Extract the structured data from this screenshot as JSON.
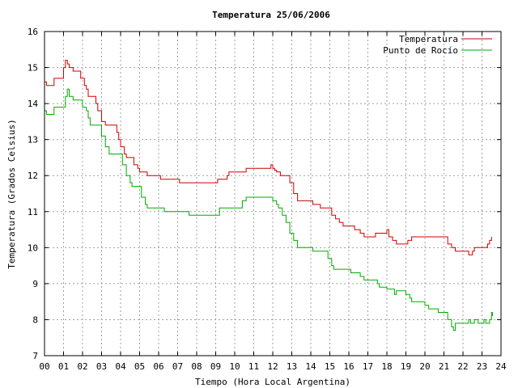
{
  "chart_data": {
    "type": "line",
    "title": "Temperatura 25/06/2006",
    "xlabel": "Tiempo (Hora Local Argentina)",
    "ylabel": "Temperatura (Grados Celsius)",
    "xlim": [
      0,
      24
    ],
    "ylim": [
      7,
      16
    ],
    "x_ticks": [
      "00",
      "01",
      "02",
      "03",
      "04",
      "05",
      "06",
      "07",
      "08",
      "09",
      "10",
      "11",
      "12",
      "13",
      "14",
      "15",
      "16",
      "17",
      "18",
      "19",
      "20",
      "21",
      "22",
      "23",
      "24"
    ],
    "y_ticks": [
      "7",
      "8",
      "9",
      "10",
      "11",
      "12",
      "13",
      "14",
      "15",
      "16"
    ],
    "grid": true,
    "legend_position": "top-right",
    "series": [
      {
        "name": "Temperatura",
        "color": "#cc0000",
        "points": [
          [
            0.0,
            14.6
          ],
          [
            0.1,
            14.5
          ],
          [
            0.4,
            14.5
          ],
          [
            0.5,
            14.7
          ],
          [
            0.9,
            14.7
          ],
          [
            1.0,
            15.0
          ],
          [
            1.1,
            15.2
          ],
          [
            1.2,
            15.1
          ],
          [
            1.3,
            15.0
          ],
          [
            1.5,
            14.9
          ],
          [
            1.8,
            14.9
          ],
          [
            1.9,
            14.7
          ],
          [
            2.1,
            14.5
          ],
          [
            2.2,
            14.4
          ],
          [
            2.3,
            14.2
          ],
          [
            2.6,
            14.2
          ],
          [
            2.7,
            14.0
          ],
          [
            2.8,
            13.8
          ],
          [
            3.0,
            13.5
          ],
          [
            3.2,
            13.4
          ],
          [
            3.7,
            13.4
          ],
          [
            3.8,
            13.2
          ],
          [
            3.9,
            13.0
          ],
          [
            4.0,
            12.8
          ],
          [
            4.2,
            12.6
          ],
          [
            4.3,
            12.5
          ],
          [
            4.6,
            12.5
          ],
          [
            4.7,
            12.3
          ],
          [
            4.9,
            12.2
          ],
          [
            5.0,
            12.1
          ],
          [
            5.3,
            12.1
          ],
          [
            5.4,
            12.0
          ],
          [
            6.0,
            12.0
          ],
          [
            6.1,
            11.9
          ],
          [
            7.0,
            11.9
          ],
          [
            7.1,
            11.8
          ],
          [
            9.0,
            11.8
          ],
          [
            9.1,
            11.9
          ],
          [
            9.5,
            11.9
          ],
          [
            9.6,
            12.0
          ],
          [
            9.7,
            12.1
          ],
          [
            10.5,
            12.1
          ],
          [
            10.6,
            12.2
          ],
          [
            11.8,
            12.2
          ],
          [
            11.9,
            12.3
          ],
          [
            12.0,
            12.2
          ],
          [
            12.1,
            12.15
          ],
          [
            12.2,
            12.1
          ],
          [
            12.4,
            12.0
          ],
          [
            12.8,
            12.0
          ],
          [
            12.9,
            11.8
          ],
          [
            13.1,
            11.5
          ],
          [
            13.3,
            11.3
          ],
          [
            14.0,
            11.3
          ],
          [
            14.1,
            11.2
          ],
          [
            14.5,
            11.1
          ],
          [
            15.0,
            11.1
          ],
          [
            15.1,
            10.9
          ],
          [
            15.3,
            10.8
          ],
          [
            15.5,
            10.7
          ],
          [
            15.7,
            10.6
          ],
          [
            16.2,
            10.6
          ],
          [
            16.3,
            10.5
          ],
          [
            16.6,
            10.4
          ],
          [
            16.8,
            10.3
          ],
          [
            17.3,
            10.3
          ],
          [
            17.4,
            10.4
          ],
          [
            17.9,
            10.4
          ],
          [
            18.0,
            10.5
          ],
          [
            18.1,
            10.3
          ],
          [
            18.3,
            10.2
          ],
          [
            18.5,
            10.1
          ],
          [
            19.0,
            10.1
          ],
          [
            19.1,
            10.2
          ],
          [
            19.3,
            10.3
          ],
          [
            21.1,
            10.3
          ],
          [
            21.2,
            10.1
          ],
          [
            21.4,
            10.0
          ],
          [
            21.6,
            9.9
          ],
          [
            22.1,
            9.9
          ],
          [
            22.3,
            9.8
          ],
          [
            22.5,
            9.9
          ],
          [
            22.6,
            10.0
          ],
          [
            23.2,
            10.0
          ],
          [
            23.3,
            10.1
          ],
          [
            23.4,
            10.2
          ],
          [
            23.5,
            10.3
          ]
        ]
      },
      {
        "name": "Punto de Rocío",
        "color": "#00aa00",
        "points": [
          [
            0.0,
            13.8
          ],
          [
            0.1,
            13.7
          ],
          [
            0.4,
            13.7
          ],
          [
            0.5,
            13.9
          ],
          [
            1.0,
            13.9
          ],
          [
            1.1,
            14.2
          ],
          [
            1.2,
            14.4
          ],
          [
            1.3,
            14.2
          ],
          [
            1.5,
            14.1
          ],
          [
            1.9,
            14.1
          ],
          [
            2.0,
            13.9
          ],
          [
            2.2,
            13.8
          ],
          [
            2.3,
            13.6
          ],
          [
            2.4,
            13.4
          ],
          [
            2.9,
            13.4
          ],
          [
            3.0,
            13.1
          ],
          [
            3.2,
            12.8
          ],
          [
            3.4,
            12.6
          ],
          [
            4.0,
            12.6
          ],
          [
            4.1,
            12.3
          ],
          [
            4.3,
            12.0
          ],
          [
            4.5,
            11.8
          ],
          [
            4.6,
            11.7
          ],
          [
            5.0,
            11.7
          ],
          [
            5.1,
            11.4
          ],
          [
            5.3,
            11.2
          ],
          [
            5.4,
            11.1
          ],
          [
            6.2,
            11.1
          ],
          [
            6.3,
            11.0
          ],
          [
            7.5,
            11.0
          ],
          [
            7.6,
            10.9
          ],
          [
            9.1,
            10.9
          ],
          [
            9.2,
            11.1
          ],
          [
            10.3,
            11.1
          ],
          [
            10.4,
            11.3
          ],
          [
            10.6,
            11.4
          ],
          [
            11.9,
            11.4
          ],
          [
            12.0,
            11.3
          ],
          [
            12.2,
            11.2
          ],
          [
            12.3,
            11.1
          ],
          [
            12.5,
            10.9
          ],
          [
            12.7,
            10.7
          ],
          [
            12.9,
            10.4
          ],
          [
            13.1,
            10.2
          ],
          [
            13.3,
            10.0
          ],
          [
            14.0,
            10.0
          ],
          [
            14.1,
            9.9
          ],
          [
            14.8,
            9.9
          ],
          [
            14.9,
            9.7
          ],
          [
            15.1,
            9.5
          ],
          [
            15.2,
            9.4
          ],
          [
            16.0,
            9.4
          ],
          [
            16.1,
            9.3
          ],
          [
            16.6,
            9.2
          ],
          [
            16.8,
            9.1
          ],
          [
            17.4,
            9.1
          ],
          [
            17.5,
            9.0
          ],
          [
            17.6,
            8.9
          ],
          [
            17.9,
            8.9
          ],
          [
            18.0,
            8.85
          ],
          [
            18.2,
            8.85
          ],
          [
            18.4,
            8.7
          ],
          [
            18.5,
            8.8
          ],
          [
            18.9,
            8.8
          ],
          [
            19.0,
            8.7
          ],
          [
            19.2,
            8.6
          ],
          [
            19.3,
            8.5
          ],
          [
            19.8,
            8.5
          ],
          [
            20.0,
            8.4
          ],
          [
            20.2,
            8.3
          ],
          [
            20.6,
            8.3
          ],
          [
            20.7,
            8.2
          ],
          [
            21.0,
            8.2
          ],
          [
            21.2,
            8.0
          ],
          [
            21.4,
            7.8
          ],
          [
            21.5,
            7.7
          ],
          [
            21.6,
            7.9
          ],
          [
            22.2,
            7.9
          ],
          [
            22.3,
            8.0
          ],
          [
            22.4,
            7.9
          ],
          [
            22.6,
            8.0
          ],
          [
            22.8,
            7.9
          ],
          [
            23.0,
            7.9
          ],
          [
            23.1,
            8.0
          ],
          [
            23.2,
            7.9
          ],
          [
            23.4,
            8.0
          ],
          [
            23.5,
            8.2
          ],
          [
            23.55,
            8.1
          ]
        ]
      }
    ]
  }
}
